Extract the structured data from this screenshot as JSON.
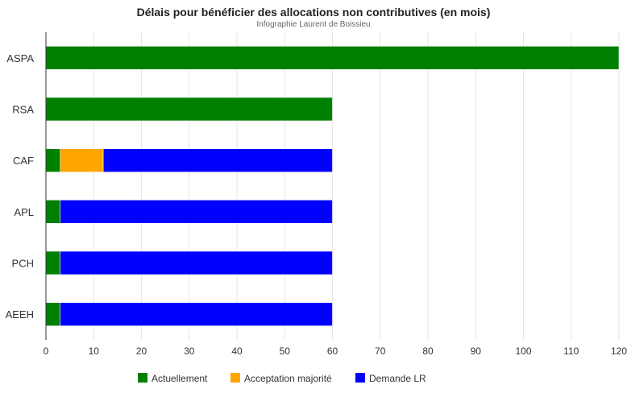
{
  "chart_data": {
    "type": "bar",
    "orientation": "horizontal",
    "stacked": true,
    "title": "Délais pour bénéficier des allocations non contributives (en mois)",
    "subtitle": "Infographie Laurent de Boissieu",
    "categories": [
      "ASPA",
      "RSA",
      "CAF",
      "APL",
      "PCH",
      "AEEH"
    ],
    "series": [
      {
        "name": "Actuellement",
        "color": "#008000",
        "values": [
          120,
          60,
          3,
          3,
          3,
          3
        ]
      },
      {
        "name": "Acceptation majorité",
        "color": "#ffa500",
        "values": [
          0,
          0,
          9,
          0,
          0,
          0
        ]
      },
      {
        "name": "Demande LR",
        "color": "#0000ff",
        "values": [
          0,
          0,
          48,
          57,
          57,
          57
        ]
      }
    ],
    "xlim": [
      0,
      120
    ],
    "xticks": [
      "0",
      "10",
      "20",
      "30",
      "40",
      "50",
      "60",
      "70",
      "80",
      "90",
      "100",
      "110",
      "120"
    ],
    "grid": true,
    "legend_position": "bottom"
  }
}
